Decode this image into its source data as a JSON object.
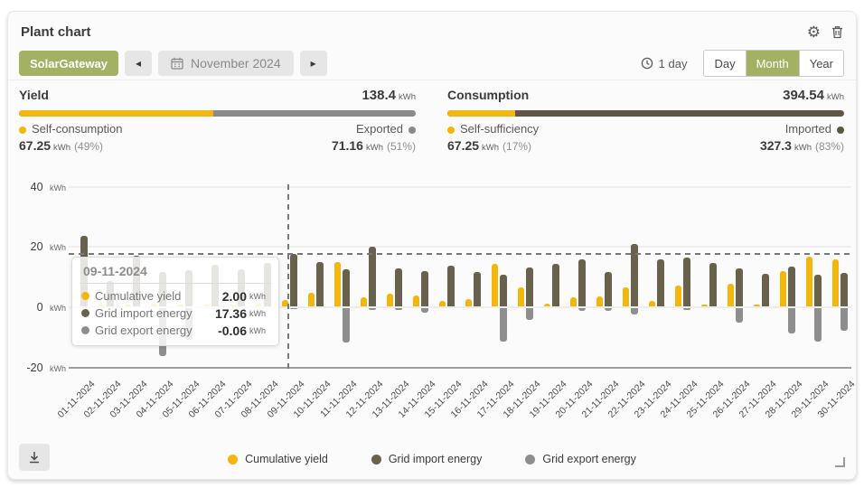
{
  "header": {
    "title": "Plant chart"
  },
  "toolbar": {
    "gateway_label": "SolarGateway",
    "prev_label": "◂",
    "next_label": "▸",
    "period_label": "November 2024",
    "interval_label": "1 day",
    "views": {
      "day": "Day",
      "month": "Month",
      "year": "Year"
    },
    "active_view": "Month"
  },
  "yield": {
    "title": "Yield",
    "total": "138.4",
    "unit": "kWh",
    "left": {
      "label": "Self-consumption",
      "value": "67.25",
      "unit": "kWh",
      "pct": "(49%)",
      "pct_num": 49
    },
    "right": {
      "label": "Exported",
      "value": "71.16",
      "unit": "kWh",
      "pct": "(51%)"
    }
  },
  "consumption": {
    "title": "Consumption",
    "total": "394.54",
    "unit": "kWh",
    "left": {
      "label": "Self-sufficiency",
      "value": "67.25",
      "unit": "kWh",
      "pct": "(17%)",
      "pct_num": 17
    },
    "right": {
      "label": "Imported",
      "value": "327.3",
      "unit": "kWh",
      "pct": "(83%)"
    }
  },
  "tooltip": {
    "date": "09-11-2024",
    "rows": [
      {
        "label": "Cumulative yield",
        "value": "2.00",
        "unit": "kWh",
        "color_key": "yellow"
      },
      {
        "label": "Grid import energy",
        "value": "17.36",
        "unit": "kWh",
        "color_key": "import"
      },
      {
        "label": "Grid export energy",
        "value": "-0.06",
        "unit": "kWh",
        "color_key": "export"
      }
    ]
  },
  "legend": [
    {
      "label": "Cumulative yield",
      "color_key": "yellow"
    },
    {
      "label": "Grid import energy",
      "color_key": "import"
    },
    {
      "label": "Grid export energy",
      "color_key": "export"
    }
  ],
  "colors": {
    "yellow": "#f2b60c",
    "import": "#68614c",
    "export": "#8e8e8e",
    "imported": "#5d5743",
    "exported": "#8a8a8a",
    "accent_green": "#a3b164"
  },
  "chart_data": {
    "type": "bar",
    "title": "Daily energy, November 2024",
    "xlabel": "",
    "ylabel": "kWh",
    "ylim": [
      -24,
      42
    ],
    "yticks": [
      40,
      20,
      0,
      -20
    ],
    "grid": true,
    "legend_position": "bottom",
    "reference_line_kwh": 17.7,
    "selected_category": "09-11-2024",
    "categories": [
      "01-11-2024",
      "02-11-2024",
      "03-11-2024",
      "04-11-2024",
      "05-11-2024",
      "06-11-2024",
      "07-11-2024",
      "08-11-2024",
      "09-11-2024",
      "10-11-2024",
      "11-11-2024",
      "12-11-2024",
      "13-11-2024",
      "14-11-2024",
      "15-11-2024",
      "16-11-2024",
      "17-11-2024",
      "18-11-2024",
      "19-11-2024",
      "20-11-2024",
      "21-11-2024",
      "22-11-2024",
      "23-11-2024",
      "24-11-2024",
      "25-11-2024",
      "26-11-2024",
      "27-11-2024",
      "28-11-2024",
      "29-11-2024",
      "30-11-2024"
    ],
    "series": [
      {
        "name": "Cumulative yield",
        "color": "#f2b60c",
        "values": [
          0,
          0.5,
          0.5,
          1.0,
          0.5,
          0.5,
          0.5,
          1.0,
          2.0,
          4.4,
          14.7,
          2.9,
          4.2,
          3.5,
          1.8,
          2.4,
          14.2,
          6.3,
          0.9,
          2.9,
          3.4,
          6.4,
          1.7,
          6.9,
          0.5,
          7.4,
          0.5,
          11.8,
          16.5,
          15.7
        ]
      },
      {
        "name": "Grid import energy",
        "color": "#68614c",
        "values": [
          23.5,
          8.5,
          16.8,
          11.5,
          11.9,
          13.8,
          12.2,
          14.5,
          17.36,
          14.7,
          12.4,
          19.9,
          12.7,
          11.8,
          13.5,
          11.5,
          10.5,
          12.8,
          14.0,
          15.7,
          11.3,
          20.8,
          15.5,
          16.2,
          14.5,
          12.7,
          10.8,
          13.2,
          10.6,
          11.2
        ]
      },
      {
        "name": "Grid export energy",
        "color": "#8e8e8e",
        "values": [
          0,
          0,
          0,
          -16.0,
          -10.4,
          0,
          0,
          0,
          -0.06,
          0,
          -11.3,
          -0.7,
          -0.7,
          -1.5,
          0,
          0,
          -11.0,
          -4.0,
          0,
          -1.0,
          -1.0,
          -2.0,
          0,
          -0.5,
          0,
          -4.9,
          0,
          -8.3,
          -11.2,
          -7.4
        ]
      }
    ]
  }
}
